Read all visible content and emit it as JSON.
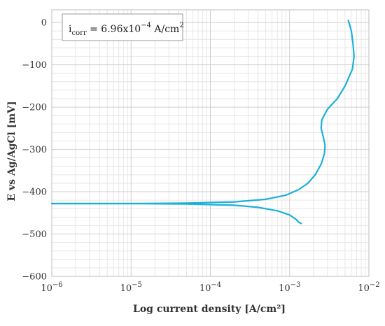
{
  "chart_data": {
    "type": "line",
    "xlabel": "Log current density [A/cm²]",
    "ylabel": "E vs Ag/AgCl [mV]",
    "xscale": "log",
    "xlim": [
      1e-06,
      0.01
    ],
    "ylim": [
      -600,
      30
    ],
    "grid": true,
    "x_tick_labels": [
      {
        "value": 1e-06,
        "base": "10",
        "exp": "−6"
      },
      {
        "value": 1e-05,
        "base": "10",
        "exp": "−5"
      },
      {
        "value": 0.0001,
        "base": "10",
        "exp": "−4"
      },
      {
        "value": 0.001,
        "base": "10",
        "exp": "−3"
      },
      {
        "value": 0.01,
        "base": "10",
        "exp": "−2"
      }
    ],
    "y_tick_labels": [
      {
        "value": 0,
        "label": "0"
      },
      {
        "value": -100,
        "label": "−100"
      },
      {
        "value": -200,
        "label": "−200"
      },
      {
        "value": -300,
        "label": "−300"
      },
      {
        "value": -400,
        "label": "−400"
      },
      {
        "value": -500,
        "label": "−500"
      },
      {
        "value": -600,
        "label": "−600"
      }
    ],
    "annotation": {
      "prefix": "i",
      "subscript": "corr",
      "value_text": " = 6.96x10",
      "exponent": "−4",
      "unit_text": " A/cm",
      "unit_exponent": "2"
    },
    "series": [
      {
        "color": "#1bb0d8",
        "points": [
          [
            0.0055,
            5
          ],
          [
            0.006,
            -20
          ],
          [
            0.0063,
            -50
          ],
          [
            0.0065,
            -80
          ],
          [
            0.0062,
            -110
          ],
          [
            0.005,
            -150
          ],
          [
            0.004,
            -180
          ],
          [
            0.003,
            -205
          ],
          [
            0.00255,
            -230
          ],
          [
            0.0025,
            -250
          ],
          [
            0.00265,
            -270
          ],
          [
            0.0028,
            -290
          ],
          [
            0.00275,
            -310
          ],
          [
            0.0025,
            -335
          ],
          [
            0.0021,
            -360
          ],
          [
            0.0017,
            -380
          ],
          [
            0.0013,
            -395
          ],
          [
            0.0009,
            -408
          ],
          [
            0.0005,
            -418
          ],
          [
            0.0002,
            -424
          ],
          [
            5e-05,
            -427
          ],
          [
            1e-05,
            -428
          ],
          [
            1e-06,
            -428
          ]
        ]
      },
      {
        "color": "#1bb0d8",
        "points": [
          [
            1e-06,
            -428
          ],
          [
            1e-05,
            -428
          ],
          [
            5e-05,
            -429
          ],
          [
            0.0002,
            -432
          ],
          [
            0.0004,
            -437
          ],
          [
            0.0007,
            -445
          ],
          [
            0.001,
            -455
          ],
          [
            0.0012,
            -465
          ],
          [
            0.0013,
            -472
          ],
          [
            0.0014,
            -475
          ]
        ]
      }
    ]
  }
}
